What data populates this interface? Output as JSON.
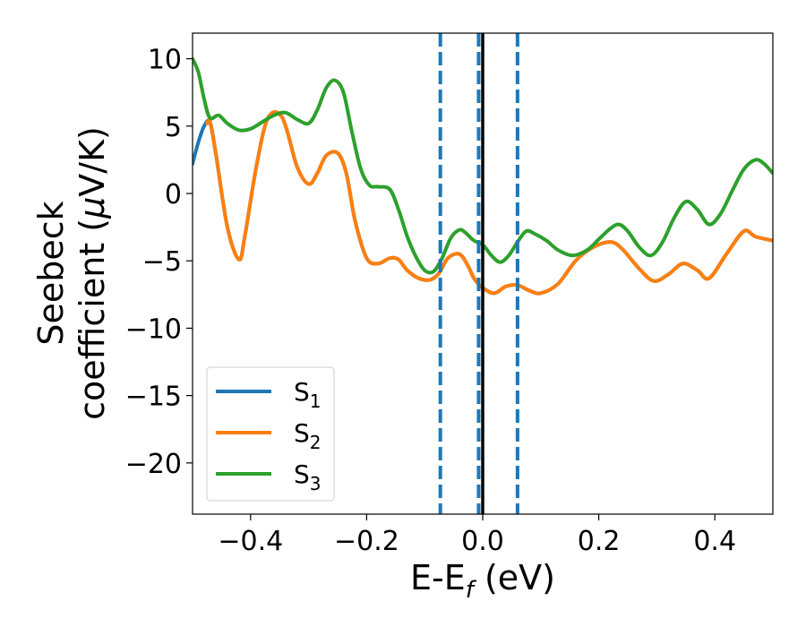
{
  "chart_data": {
    "type": "line",
    "title": "",
    "xlabel": "E-E",
    "xlabel_sub": "f",
    "xlabel_unit": " (eV)",
    "ylabel_line1": "Seebeck",
    "ylabel_line2": "coefficient  (",
    "ylabel_mu": "μ",
    "ylabel_line2_end": "V/K)",
    "xlim": [
      -0.5,
      0.5
    ],
    "ylim": [
      -23.8,
      11.9
    ],
    "xticks": [
      -0.4,
      -0.2,
      0.0,
      0.2,
      0.4
    ],
    "xtick_labels": [
      "−0.4",
      "−0.2",
      "0.0",
      "0.2",
      "0.4"
    ],
    "yticks": [
      10,
      5,
      0,
      -5,
      -10,
      -15,
      -20
    ],
    "ytick_labels": [
      "10",
      "5",
      "0",
      "−5",
      "−10",
      "−15",
      "−20"
    ],
    "grid": false,
    "legend_position": "lower-left",
    "vlines": [
      {
        "x": -0.073,
        "style": "dashed",
        "color": "#1f77b4"
      },
      {
        "x": -0.007,
        "style": "dashed",
        "color": "#1f77b4"
      },
      {
        "x": 0.06,
        "style": "dashed",
        "color": "#1f77b4"
      },
      {
        "x": 0.0,
        "style": "solid",
        "color": "#000000"
      }
    ],
    "series": [
      {
        "name": "S",
        "sub": "1",
        "color": "#1f77b4",
        "x": [
          -0.5,
          -0.49,
          -0.48,
          -0.47,
          -0.46,
          -0.44,
          -0.42,
          -0.41,
          -0.39,
          -0.37,
          -0.345,
          -0.32,
          -0.3,
          -0.285,
          -0.27,
          -0.25,
          -0.235,
          -0.22,
          -0.2,
          -0.18,
          -0.16,
          -0.145,
          -0.13,
          -0.11,
          -0.09,
          -0.075,
          -0.06,
          -0.04,
          -0.025,
          -0.015,
          0.0,
          0.02,
          0.04,
          0.06,
          0.08,
          0.1,
          0.13,
          0.16,
          0.19,
          0.22,
          0.24,
          0.27,
          0.295,
          0.32,
          0.345,
          0.37,
          0.39,
          0.42,
          0.45,
          0.47,
          0.5
        ],
        "y": [
          2.2,
          3.8,
          5.0,
          5.3,
          3.0,
          -2.5,
          -4.9,
          -3.2,
          2.0,
          5.6,
          5.6,
          2.0,
          0.7,
          1.5,
          2.8,
          3.0,
          1.5,
          -2.0,
          -4.8,
          -5.2,
          -4.8,
          -4.9,
          -5.7,
          -6.3,
          -6.4,
          -5.9,
          -4.8,
          -4.5,
          -5.4,
          -6.3,
          -7.0,
          -7.4,
          -6.9,
          -6.8,
          -7.2,
          -7.4,
          -6.7,
          -5.0,
          -4.0,
          -3.6,
          -4.1,
          -5.6,
          -6.5,
          -6.0,
          -5.2,
          -5.7,
          -6.3,
          -4.5,
          -2.8,
          -3.2,
          -3.5
        ]
      },
      {
        "name": "S",
        "sub": "2",
        "color": "#ff7f0e",
        "x": [
          -0.475,
          -0.47,
          -0.46,
          -0.44,
          -0.42,
          -0.41,
          -0.39,
          -0.37,
          -0.345,
          -0.32,
          -0.3,
          -0.285,
          -0.27,
          -0.25,
          -0.235,
          -0.22,
          -0.2,
          -0.18,
          -0.16,
          -0.145,
          -0.13,
          -0.11,
          -0.09,
          -0.075,
          -0.06,
          -0.04,
          -0.025,
          -0.015,
          0.0,
          0.02,
          0.04,
          0.06,
          0.08,
          0.1,
          0.13,
          0.16,
          0.19,
          0.22,
          0.24,
          0.27,
          0.295,
          0.32,
          0.345,
          0.37,
          0.39,
          0.42,
          0.45,
          0.47,
          0.5
        ],
        "y": [
          5.2,
          5.3,
          3.0,
          -2.5,
          -4.9,
          -3.2,
          2.0,
          5.6,
          5.6,
          2.0,
          0.7,
          1.5,
          2.8,
          3.0,
          1.5,
          -2.0,
          -4.8,
          -5.2,
          -4.8,
          -4.9,
          -5.7,
          -6.3,
          -6.4,
          -5.9,
          -4.8,
          -4.5,
          -5.4,
          -6.3,
          -7.0,
          -7.4,
          -6.9,
          -6.8,
          -7.2,
          -7.4,
          -6.7,
          -5.0,
          -4.0,
          -3.6,
          -4.1,
          -5.6,
          -6.5,
          -6.0,
          -5.2,
          -5.7,
          -6.3,
          -4.5,
          -2.8,
          -3.2,
          -3.5
        ]
      },
      {
        "name": "S",
        "sub": "3",
        "color": "#2ca02c",
        "x": [
          -0.5,
          -0.49,
          -0.48,
          -0.47,
          -0.455,
          -0.44,
          -0.42,
          -0.4,
          -0.38,
          -0.36,
          -0.34,
          -0.32,
          -0.3,
          -0.285,
          -0.27,
          -0.255,
          -0.24,
          -0.225,
          -0.21,
          -0.195,
          -0.18,
          -0.16,
          -0.145,
          -0.13,
          -0.115,
          -0.1,
          -0.085,
          -0.07,
          -0.055,
          -0.04,
          -0.03,
          -0.015,
          0.0,
          0.015,
          0.03,
          0.045,
          0.06,
          0.075,
          0.09,
          0.11,
          0.13,
          0.155,
          0.18,
          0.2,
          0.22,
          0.235,
          0.25,
          0.27,
          0.29,
          0.31,
          0.33,
          0.35,
          0.37,
          0.39,
          0.41,
          0.43,
          0.45,
          0.47,
          0.485,
          0.5
        ],
        "y": [
          10.0,
          9.0,
          7.0,
          5.6,
          5.8,
          5.2,
          4.7,
          4.8,
          5.3,
          5.8,
          6.0,
          5.5,
          5.2,
          6.2,
          7.8,
          8.4,
          7.5,
          4.5,
          1.8,
          0.6,
          0.5,
          0.3,
          -1.2,
          -3.2,
          -4.7,
          -5.7,
          -5.8,
          -4.8,
          -3.3,
          -2.7,
          -2.9,
          -3.5,
          -3.8,
          -4.6,
          -5.1,
          -4.6,
          -3.6,
          -2.8,
          -3.0,
          -3.5,
          -4.2,
          -4.6,
          -4.2,
          -3.4,
          -2.6,
          -2.3,
          -2.8,
          -4.0,
          -4.6,
          -3.6,
          -1.8,
          -0.6,
          -1.2,
          -2.3,
          -1.5,
          0.2,
          1.8,
          2.5,
          2.2,
          1.5
        ]
      }
    ]
  }
}
